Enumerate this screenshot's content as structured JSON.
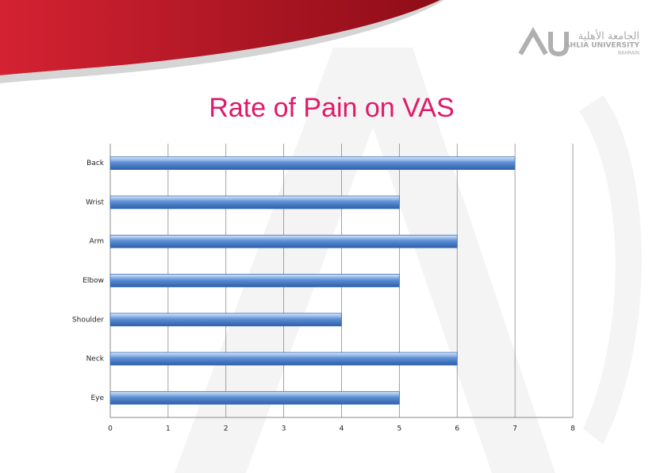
{
  "logo": {
    "arabic": "الجامعة الأهلية",
    "name": "AHLIA UNIVERSITY",
    "location": "BAHRAIN"
  },
  "chart_data": {
    "type": "bar",
    "orientation": "horizontal",
    "title": "Rate of Pain on VAS",
    "categories": [
      "Back",
      "Wrist",
      "Arm",
      "Elbow",
      "Shoulder",
      "Neck",
      "Eye"
    ],
    "values": [
      7,
      5,
      6,
      5,
      4,
      6,
      5
    ],
    "color": "#5b8fd6",
    "xlim": [
      0,
      8
    ],
    "xticks": [
      0,
      1,
      2,
      3,
      4,
      5,
      6,
      7,
      8
    ],
    "grid": true
  }
}
